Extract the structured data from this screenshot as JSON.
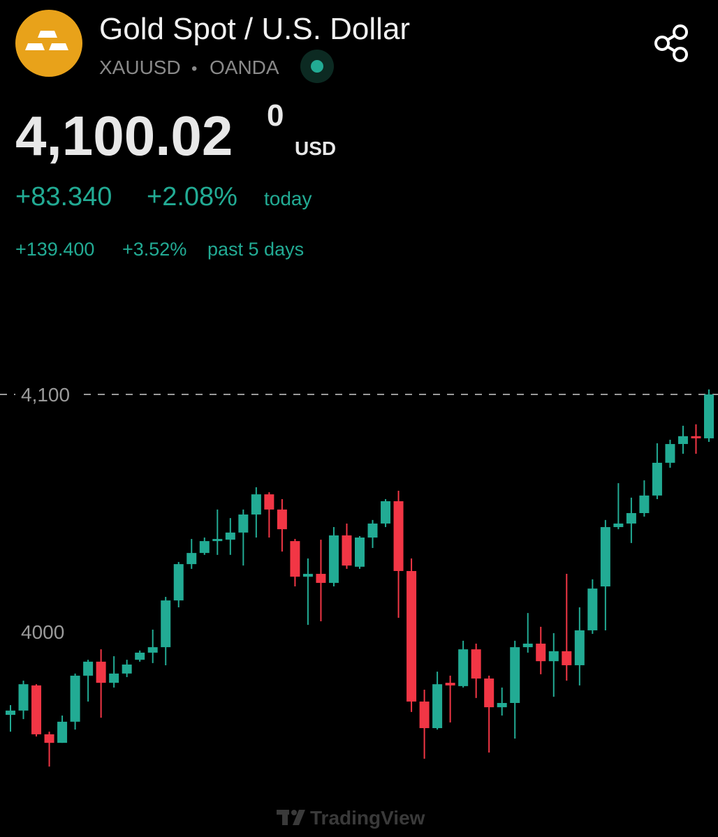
{
  "header": {
    "title": "Gold Spot / U.S. Dollar",
    "symbol": "XAUUSD",
    "separator": "•",
    "exchange": "OANDA",
    "price": "4,100.02",
    "price_sup": "0",
    "currency": "USD",
    "change": "+83.340",
    "change_pct": "+2.08%",
    "change_period": "today",
    "change_5d": "+139.400",
    "change_5d_pct": "+3.52%",
    "change_5d_period": "past 5 days"
  },
  "chart_data": {
    "type": "candlestick",
    "watermark": "TradingView",
    "up_color": "#22ab94",
    "down_color": "#f23645",
    "ylim": [
      3930,
      4130
    ],
    "yticks": [
      4000,
      {
        "value": 4100,
        "label": "4,100"
      }
    ],
    "open": [
      3965.0,
      3966.8,
      3977.4,
      3956.8,
      3953.2,
      3962.1,
      3981.5,
      3987.4,
      3978.5,
      3982.4,
      3988.2,
      3991.2,
      3993.5,
      4013.2,
      4028.5,
      4033.2,
      4038.2,
      4038.8,
      4041.8,
      4049.4,
      4057.9,
      4051.5,
      4038.2,
      4023.2,
      4024.4,
      4020.6,
      4040.6,
      4027.4,
      4039.7,
      4045.6,
      4055.0,
      4025.6,
      3970.6,
      3959.4,
      3978.5,
      3977.1,
      3992.6,
      3980.3,
      3968.2,
      3970.0,
      3993.5,
      3995.0,
      3987.6,
      3991.8,
      3985.9,
      4000.6,
      4019.1,
      4044.1,
      4045.6,
      4050.0,
      4057.4,
      4071.2,
      4079.1,
      4082.4,
      4081.5
    ],
    "high": [
      3969.1,
      3979.4,
      3977.9,
      3957.9,
      3964.7,
      3982.4,
      3988.2,
      3992.6,
      3989.7,
      3988.2,
      3992.1,
      4000.9,
      4014.7,
      4029.4,
      4039.1,
      4039.7,
      4051.5,
      4047.9,
      4051.5,
      4060.9,
      4058.8,
      4055.9,
      4039.1,
      4030.9,
      4038.8,
      4044.1,
      4045.6,
      4040.3,
      4047.1,
      4055.9,
      4059.4,
      4030.9,
      3975.6,
      3983.2,
      3981.5,
      3996.2,
      3995.0,
      3981.5,
      3976.5,
      3996.2,
      4007.9,
      4002.1,
      3999.4,
      4024.4,
      4010.3,
      4022.1,
      4047.1,
      4062.6,
      4056.5,
      4063.8,
      4079.4,
      4080.9,
      4086.8,
      4087.4,
      4102.1
    ],
    "low": [
      3957.9,
      3963.2,
      3955.9,
      3943.2,
      3953.2,
      3958.8,
      3970.6,
      3963.8,
      3976.5,
      3980.9,
      3987.4,
      3986.8,
      3985.9,
      4010.3,
      4026.5,
      4032.4,
      4032.4,
      4032.4,
      4027.9,
      4039.7,
      4039.7,
      4033.8,
      4019.1,
      4002.9,
      4004.4,
      4019.1,
      4026.5,
      4026.5,
      4035.3,
      4044.1,
      4005.9,
      3966.2,
      3946.5,
      3958.8,
      3961.8,
      3976.5,
      3972.1,
      3949.1,
      3964.7,
      3955.0,
      3991.2,
      3982.1,
      3972.6,
      3979.4,
      3977.4,
      3999.1,
      4000.6,
      4043.2,
      4037.4,
      4048.5,
      4055.9,
      4069.1,
      4075.0,
      4075.0,
      4080.0
    ],
    "close": [
      3966.8,
      3977.9,
      3956.8,
      3953.2,
      3962.1,
      3981.5,
      3987.4,
      3978.5,
      3982.4,
      3986.2,
      3991.2,
      3993.5,
      4013.2,
      4028.5,
      4033.2,
      4038.2,
      4039.1,
      4041.8,
      4049.4,
      4057.9,
      4051.5,
      4043.2,
      4023.2,
      4024.4,
      4020.6,
      4040.6,
      4027.9,
      4039.7,
      4045.6,
      4055.0,
      4025.6,
      3970.6,
      3959.4,
      3977.9,
      3977.4,
      3992.6,
      3980.3,
      3968.2,
      3970.0,
      3993.5,
      3995.0,
      3987.6,
      3991.8,
      3985.9,
      4000.6,
      4018.2,
      4044.1,
      4045.6,
      4050.0,
      4057.4,
      4071.2,
      4079.1,
      4082.4,
      4081.5,
      4100.0
    ]
  }
}
